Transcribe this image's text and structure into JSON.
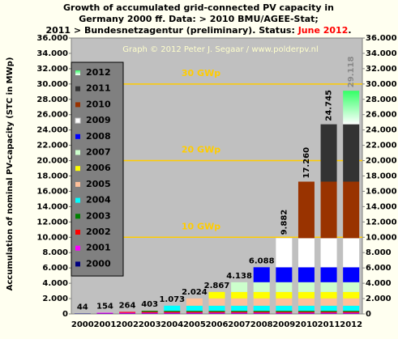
{
  "chart_data": {
    "type": "stacked-bar",
    "title": [
      "Growth of accumulated grid-connected PV capacity in",
      "Germany 2000 ff. Data: > 2010 BMU/AGEE-Stat;",
      "2011 > Bundesnetzagentur (preliminary). Status:"
    ],
    "status": "June 2012",
    "title_end": ".",
    "watermark": "Graph © 2012 Peter J. Segaar / www.polderpv.nl",
    "ylabel": "Accumulation  of nominal  PV-capacity  (STC  in MWp)",
    "categories": [
      "2000",
      "2001",
      "2002",
      "2003",
      "2004",
      "2005",
      "2006",
      "2007",
      "2008",
      "2009",
      "2010",
      "2011",
      "2012"
    ],
    "series": [
      {
        "name": "2000",
        "color": "#000080",
        "values": [
          44,
          44,
          44,
          44,
          44,
          44,
          44,
          44,
          44,
          44,
          44,
          44,
          44
        ]
      },
      {
        "name": "2001",
        "color": "#ff00ff",
        "values": [
          null,
          110,
          110,
          110,
          110,
          110,
          110,
          110,
          110,
          110,
          110,
          110,
          110
        ]
      },
      {
        "name": "2002",
        "color": "#ff0000",
        "values": [
          null,
          null,
          110,
          110,
          110,
          110,
          110,
          110,
          110,
          110,
          110,
          110,
          110
        ]
      },
      {
        "name": "2003",
        "color": "#008000",
        "values": [
          null,
          null,
          null,
          139,
          139,
          139,
          139,
          139,
          139,
          139,
          139,
          139,
          139
        ]
      },
      {
        "name": "2004",
        "color": "#00ffff",
        "values": [
          null,
          null,
          null,
          null,
          670,
          670,
          670,
          670,
          670,
          670,
          670,
          670,
          670
        ]
      },
      {
        "name": "2005",
        "color": "#ffc099",
        "values": [
          null,
          null,
          null,
          null,
          null,
          951,
          951,
          951,
          951,
          951,
          951,
          951,
          951
        ]
      },
      {
        "name": "2006",
        "color": "#ffff00",
        "values": [
          null,
          null,
          null,
          null,
          null,
          null,
          843,
          843,
          843,
          843,
          843,
          843,
          843
        ]
      },
      {
        "name": "2007",
        "color": "#ccffcc",
        "values": [
          null,
          null,
          null,
          null,
          null,
          null,
          null,
          1271,
          1271,
          1271,
          1271,
          1271,
          1271
        ]
      },
      {
        "name": "2008",
        "color": "#0000ff",
        "values": [
          null,
          null,
          null,
          null,
          null,
          null,
          null,
          null,
          1950,
          1950,
          1950,
          1950,
          1950
        ]
      },
      {
        "name": "2009",
        "color": "#ffffff",
        "values": [
          null,
          null,
          null,
          null,
          null,
          null,
          null,
          null,
          null,
          3794,
          3794,
          3794,
          3794
        ]
      },
      {
        "name": "2010",
        "color": "#993300",
        "values": [
          null,
          null,
          null,
          null,
          null,
          null,
          null,
          null,
          null,
          null,
          7378,
          7378,
          7378
        ]
      },
      {
        "name": "2011",
        "color": "#333333",
        "values": [
          null,
          null,
          null,
          null,
          null,
          null,
          null,
          null,
          null,
          null,
          null,
          7485,
          7485
        ]
      },
      {
        "name": "2012",
        "color": "#33ff66",
        "gradient": true,
        "values": [
          null,
          null,
          null,
          null,
          null,
          null,
          null,
          null,
          null,
          null,
          null,
          null,
          4373
        ]
      }
    ],
    "totals": {
      "values": [
        44,
        154,
        264,
        403,
        1073,
        2024,
        2867,
        4138,
        6088,
        9882,
        17260,
        24745,
        29118
      ],
      "value_labels": [
        "44",
        "154",
        "264",
        "403",
        "1.073",
        "2.024",
        "2.867",
        "4.138",
        "6.088",
        "9.882",
        "17.260",
        "24.745",
        "29.118"
      ]
    },
    "reference_lines": [
      {
        "value": 10000,
        "label": "10 GWp"
      },
      {
        "value": 20000,
        "label": "20 GWp"
      },
      {
        "value": 30000,
        "label": "30 GWp"
      }
    ],
    "ylim": [
      0,
      36000
    ],
    "yticks": [
      0,
      {
        "value": 2000,
        "label": "2.000"
      },
      {
        "value": 4000,
        "label": "4.000"
      },
      {
        "value": 6000,
        "label": "6.000"
      },
      {
        "value": 8000,
        "label": "8.000"
      },
      {
        "value": 10000,
        "label": "10.000"
      },
      {
        "value": 12000,
        "label": "12.000"
      },
      {
        "value": 14000,
        "label": "14.000"
      },
      {
        "value": 16000,
        "label": "16.000"
      },
      {
        "value": 18000,
        "label": "18.000"
      },
      {
        "value": 20000,
        "label": "20.000"
      },
      {
        "value": 22000,
        "label": "22.000"
      },
      {
        "value": 24000,
        "label": "24.000"
      },
      {
        "value": 26000,
        "label": "26.000"
      },
      {
        "value": 28000,
        "label": "28.000"
      },
      {
        "value": 30000,
        "label": "30.000"
      },
      {
        "value": 32000,
        "label": "32.000"
      },
      {
        "value": 34000,
        "label": "34.000"
      },
      {
        "value": 36000,
        "label": "36.000"
      }
    ],
    "legend": "upper left"
  }
}
